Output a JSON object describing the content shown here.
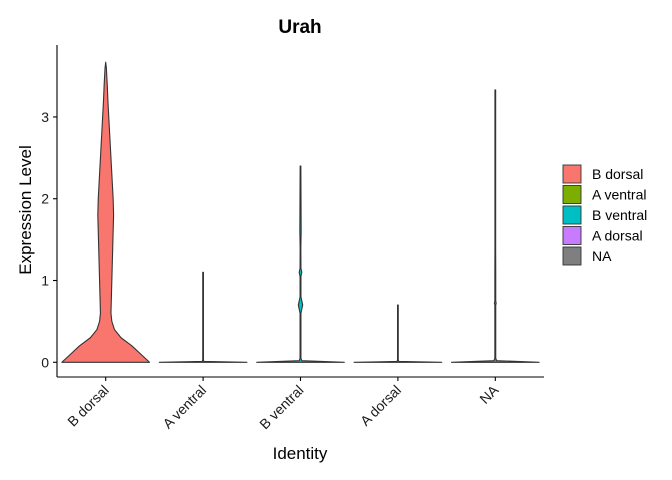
{
  "chart_data": {
    "type": "violin",
    "title": "Urah",
    "xlabel": "Identity",
    "ylabel": "Expression Level",
    "ylim": [
      -0.18,
      3.88
    ],
    "yticks": [
      0,
      1,
      2,
      3
    ],
    "grid": false,
    "legend_position": "right",
    "categories": [
      "B dorsal",
      "A ventral",
      "B ventral",
      "A dorsal",
      "NA"
    ],
    "series": [
      {
        "name": "B dorsal",
        "color": "#F8766D",
        "max": 3.67,
        "density": [
          [
            0.0,
            1.0
          ],
          [
            0.1,
            0.8
          ],
          [
            0.2,
            0.6
          ],
          [
            0.3,
            0.35
          ],
          [
            0.4,
            0.2
          ],
          [
            0.5,
            0.14
          ],
          [
            0.6,
            0.12
          ],
          [
            0.8,
            0.13
          ],
          [
            1.0,
            0.14
          ],
          [
            1.2,
            0.15
          ],
          [
            1.4,
            0.16
          ],
          [
            1.6,
            0.17
          ],
          [
            1.8,
            0.18
          ],
          [
            2.0,
            0.17
          ],
          [
            2.2,
            0.15
          ],
          [
            2.4,
            0.13
          ],
          [
            2.6,
            0.11
          ],
          [
            2.8,
            0.09
          ],
          [
            3.0,
            0.07
          ],
          [
            3.2,
            0.05
          ],
          [
            3.4,
            0.035
          ],
          [
            3.6,
            0.015
          ],
          [
            3.67,
            0.0
          ]
        ]
      },
      {
        "name": "A ventral",
        "color": "#7CAE00",
        "max": 1.1,
        "density": [
          [
            0.0,
            1.0
          ],
          [
            0.01,
            0.02
          ],
          [
            0.03,
            0.008
          ],
          [
            1.1,
            0.008
          ]
        ]
      },
      {
        "name": "B ventral",
        "color": "#00BFC4",
        "max": 2.4,
        "density": [
          [
            0.0,
            1.0
          ],
          [
            0.02,
            0.03
          ],
          [
            0.05,
            0.01
          ],
          [
            0.6,
            0.01
          ],
          [
            0.7,
            0.05
          ],
          [
            0.8,
            0.01
          ],
          [
            1.05,
            0.01
          ],
          [
            1.1,
            0.03
          ],
          [
            1.15,
            0.01
          ],
          [
            1.4,
            0.008
          ],
          [
            1.6,
            0.015
          ],
          [
            2.4,
            0.008
          ]
        ]
      },
      {
        "name": "A dorsal",
        "color": "#C77CFF",
        "max": 0.7,
        "density": [
          [
            0.0,
            1.0
          ],
          [
            0.01,
            0.02
          ],
          [
            0.03,
            0.008
          ],
          [
            0.7,
            0.008
          ]
        ]
      },
      {
        "name": "NA",
        "color": "#7F7F7F",
        "max": 3.33,
        "density": [
          [
            0.0,
            1.0
          ],
          [
            0.02,
            0.03
          ],
          [
            0.05,
            0.01
          ],
          [
            0.7,
            0.01
          ],
          [
            0.72,
            0.02
          ],
          [
            0.75,
            0.01
          ],
          [
            1.1,
            0.01
          ],
          [
            1.4,
            0.008
          ],
          [
            3.33,
            0.008
          ]
        ]
      }
    ],
    "legend": [
      "B dorsal",
      "A ventral",
      "B ventral",
      "A dorsal",
      "NA"
    ]
  }
}
